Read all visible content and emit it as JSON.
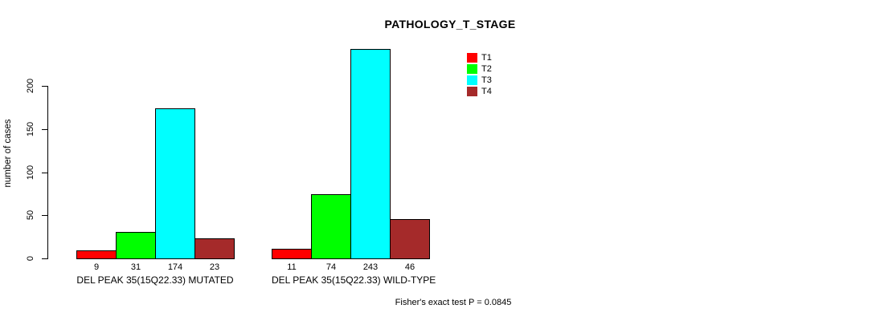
{
  "chart_data": {
    "type": "bar",
    "title": "PATHOLOGY_T_STAGE",
    "ylabel": "number of cases",
    "yticks": [
      0,
      50,
      100,
      150,
      200
    ],
    "ylim": [
      0,
      243
    ],
    "grid": false,
    "legend_position": "top-right",
    "categories": [
      "DEL PEAK 35(15Q22.33) MUTATED",
      "DEL PEAK 35(15Q22.33) WILD-TYPE"
    ],
    "series": [
      {
        "name": "T1",
        "color": "#FF0000",
        "values": [
          9,
          11
        ]
      },
      {
        "name": "T2",
        "color": "#00FF00",
        "values": [
          31,
          74
        ]
      },
      {
        "name": "T3",
        "color": "#00FFFF",
        "values": [
          174,
          243
        ]
      },
      {
        "name": "T4",
        "color": "#A52A2A",
        "values": [
          23,
          46
        ]
      }
    ],
    "bar_value_labels_shown": true,
    "annotation": "Fisher's exact test P = 0.0845"
  }
}
